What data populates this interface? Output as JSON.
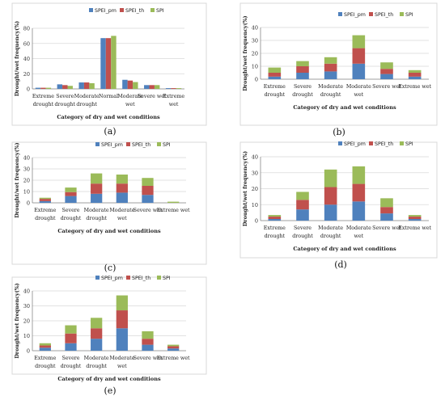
{
  "colors": {
    "SPEI_pm": "#4f81bd",
    "SPEI_th": "#c0504d",
    "SPI": "#9bbb59"
  },
  "chart_data": [
    {
      "panel": "(a)",
      "type": "bar",
      "stacked": false,
      "ylabel": "Drought/wet frequency(%)",
      "xlabel": "Category of dry and wet conditions",
      "ylim": [
        0,
        80
      ],
      "yticks": [
        0,
        20,
        40,
        60,
        80
      ],
      "legend_position": "top-right",
      "categories": [
        "Extreme\ndrought",
        "Severe\ndrought",
        "Moderate\ndrought",
        "Normal",
        "Moderate\nwet",
        "Severe wet",
        "Extreme\nwet"
      ],
      "series": [
        {
          "name": "SPEI_pm",
          "values": [
            1.5,
            6,
            8.5,
            67,
            12,
            5,
            1
          ]
        },
        {
          "name": "SPEI_th",
          "values": [
            1.5,
            5,
            8.5,
            67,
            11,
            5,
            1
          ]
        },
        {
          "name": "SPI",
          "values": [
            1.5,
            4,
            7.5,
            70,
            9,
            5,
            1
          ]
        }
      ]
    },
    {
      "panel": "(b)",
      "type": "bar",
      "stacked": true,
      "ylabel": "Drought/wet frequency(%)",
      "xlabel": "Category of dry and wet conditions",
      "ylim": [
        0,
        40
      ],
      "yticks": [
        0,
        10,
        20,
        30,
        40
      ],
      "legend_position": "top-right",
      "categories": [
        "Extreme\ndrought",
        "Severe\ndrought",
        "Moderate\ndrought",
        "Moderate\nwet",
        "Severe wet",
        "Extreme wet"
      ],
      "series": [
        {
          "name": "SPEI_pm",
          "values": [
            2,
            5,
            6,
            12,
            4,
            2
          ]
        },
        {
          "name": "SPEI_th",
          "values": [
            3,
            5,
            6,
            12,
            4,
            3
          ]
        },
        {
          "name": "SPI",
          "values": [
            4,
            4,
            5,
            10,
            5,
            2
          ]
        }
      ]
    },
    {
      "panel": "(c)",
      "type": "bar",
      "stacked": true,
      "ylabel": "Drought/wet frequency(%)",
      "xlabel": "Category of dry and wet conditions",
      "ylim": [
        0,
        40
      ],
      "yticks": [
        0,
        10,
        20,
        30,
        40
      ],
      "legend_position": "top-right",
      "categories": [
        "Extreme\ndrought",
        "Severe\ndrought",
        "Moderate\ndrought",
        "Moderate\nwet",
        "Severe wet",
        "Extreme wet"
      ],
      "series": [
        {
          "name": "SPEI_pm",
          "values": [
            1.5,
            6,
            8,
            9,
            7,
            0
          ]
        },
        {
          "name": "SPEI_th",
          "values": [
            2,
            3.5,
            9,
            8,
            8,
            0
          ]
        },
        {
          "name": "SPI",
          "values": [
            1,
            4,
            9,
            8,
            7,
            1
          ]
        }
      ]
    },
    {
      "panel": "(d)",
      "type": "bar",
      "stacked": true,
      "ylabel": "Drought/wet frequency(%)",
      "xlabel": "Category of dry and wet conditions",
      "ylim": [
        0,
        40
      ],
      "yticks": [
        0,
        10,
        20,
        30,
        40
      ],
      "legend_position": "top-right",
      "categories": [
        "Extreme\ndrought",
        "Severe\ndrought",
        "Moderate\ndrought",
        "Moderate\nwet",
        "Severe wet",
        "Extreme wet"
      ],
      "series": [
        {
          "name": "SPEI_pm",
          "values": [
            1,
            7,
            10,
            12,
            4.5,
            1
          ]
        },
        {
          "name": "SPEI_th",
          "values": [
            1.5,
            6,
            11,
            11,
            4,
            1.5
          ]
        },
        {
          "name": "SPI",
          "values": [
            1,
            5,
            11,
            11,
            5.5,
            1
          ]
        }
      ]
    },
    {
      "panel": "(e)",
      "type": "bar",
      "stacked": true,
      "ylabel": "Drought/wet frequency(%)",
      "xlabel": "Category of dry and wet conditions",
      "ylim": [
        0,
        40
      ],
      "yticks": [
        0,
        10,
        20,
        30,
        40
      ],
      "legend_position": "top-right",
      "categories": [
        "Extreme\ndrought",
        "Severe\ndrought",
        "Moderate\ndrought",
        "Moderate\nwet",
        "Severe wet",
        "Extreme wet"
      ],
      "series": [
        {
          "name": "SPEI_pm",
          "values": [
            2,
            5,
            8,
            15,
            4,
            1.5
          ]
        },
        {
          "name": "SPEI_th",
          "values": [
            1.5,
            6.5,
            7,
            12,
            4,
            1.5
          ]
        },
        {
          "name": "SPI",
          "values": [
            1.5,
            5.5,
            7,
            10,
            5,
            1
          ]
        }
      ]
    }
  ]
}
